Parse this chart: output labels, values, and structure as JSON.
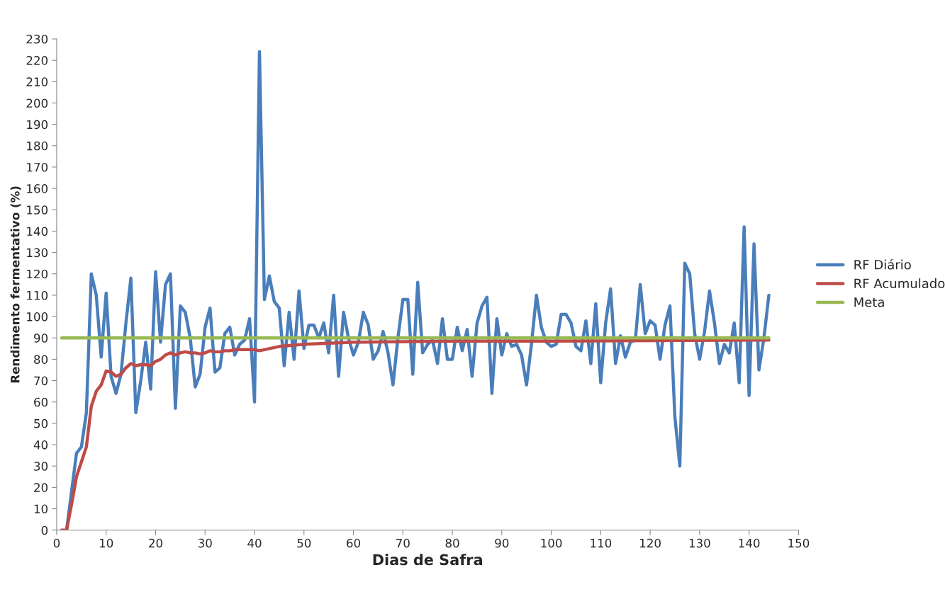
{
  "chart_data": {
    "type": "line",
    "xlabel": "Dias de Safra",
    "ylabel": "Rendimento fermentativo (%)",
    "xlim": [
      0,
      150
    ],
    "ylim": [
      0,
      230
    ],
    "xticks": [
      0,
      10,
      20,
      30,
      40,
      50,
      60,
      70,
      80,
      90,
      100,
      110,
      120,
      130,
      140,
      150
    ],
    "yticks": [
      0,
      10,
      20,
      30,
      40,
      50,
      60,
      70,
      80,
      90,
      100,
      110,
      120,
      130,
      140,
      150,
      160,
      170,
      180,
      190,
      200,
      210,
      220,
      230
    ],
    "grid": false,
    "legend": "right",
    "marker": "none",
    "line_style": "solid",
    "series": [
      {
        "name": "RF Diário",
        "color": "#4a7ebb",
        "x": [
          2,
          3,
          4,
          5,
          6,
          7,
          8,
          9,
          10,
          11,
          12,
          13,
          14,
          15,
          16,
          17,
          18,
          19,
          20,
          21,
          22,
          23,
          24,
          25,
          26,
          27,
          28,
          29,
          30,
          31,
          32,
          33,
          34,
          35,
          36,
          37,
          38,
          39,
          40,
          41,
          42,
          43,
          44,
          45,
          46,
          47,
          48,
          49,
          50,
          51,
          52,
          53,
          54,
          55,
          56,
          57,
          58,
          59,
          60,
          61,
          62,
          63,
          64,
          65,
          66,
          67,
          68,
          69,
          70,
          71,
          72,
          73,
          74,
          75,
          76,
          77,
          78,
          79,
          80,
          81,
          82,
          83,
          84,
          85,
          86,
          87,
          88,
          89,
          90,
          91,
          92,
          93,
          94,
          95,
          96,
          97,
          98,
          99,
          100,
          101,
          102,
          103,
          104,
          105,
          106,
          107,
          108,
          109,
          110,
          111,
          112,
          113,
          114,
          115,
          116,
          117,
          118,
          119,
          120,
          121,
          122,
          123,
          124,
          125,
          126,
          127,
          128,
          129,
          130,
          131,
          132,
          133,
          134,
          135,
          136,
          137,
          138,
          139,
          140,
          141,
          142,
          143,
          144
        ],
        "values": [
          0,
          18,
          36,
          39,
          55,
          120,
          110,
          81,
          111,
          72,
          64,
          73,
          97,
          118,
          55,
          70,
          88,
          66,
          121,
          88,
          115,
          120,
          57,
          105,
          102,
          90,
          67,
          73,
          95,
          104,
          74,
          76,
          92,
          95,
          82,
          87,
          89,
          99,
          60,
          224,
          108,
          119,
          107,
          104,
          77,
          102,
          80,
          112,
          85,
          96,
          96,
          90,
          97,
          83,
          110,
          72,
          102,
          90,
          82,
          88,
          102,
          96,
          80,
          84,
          93,
          83,
          68,
          90,
          108,
          108,
          73,
          116,
          83,
          87,
          89,
          78,
          99,
          80,
          80,
          95,
          84,
          94,
          72,
          97,
          105,
          109,
          64,
          99,
          82,
          92,
          86,
          87,
          82,
          68,
          87,
          110,
          95,
          88,
          86,
          87,
          101,
          101,
          97,
          86,
          84,
          98,
          78,
          106,
          69,
          97,
          113,
          78,
          91,
          81,
          88,
          89,
          115,
          92,
          98,
          96,
          80,
          96,
          105,
          53,
          30,
          125,
          120,
          92,
          80,
          93,
          112,
          97,
          78,
          87,
          83,
          97,
          69,
          142,
          63,
          134,
          75,
          90,
          110
        ]
      },
      {
        "name": "RF Acumulado",
        "color": "#be4b48",
        "x": [
          1,
          2,
          3,
          4,
          5,
          6,
          7,
          8,
          9,
          10,
          11,
          12,
          13,
          14,
          15,
          16,
          17,
          18,
          19,
          20,
          21,
          22,
          23,
          24,
          25,
          26,
          27,
          28,
          29,
          30,
          31,
          32,
          33,
          34,
          35,
          36,
          40,
          41,
          42,
          45,
          50,
          60,
          80,
          100,
          144
        ],
        "values": [
          0,
          0,
          12,
          25,
          32,
          39,
          58,
          65,
          68,
          74.5,
          74,
          72,
          73,
          76,
          78,
          77,
          77.5,
          77.5,
          77,
          79,
          80,
          82,
          83,
          82,
          83,
          83.5,
          83,
          83,
          82.5,
          83,
          84,
          83.5,
          83.5,
          84,
          84,
          84.5,
          84.5,
          84,
          84.5,
          86,
          87,
          88,
          88.5,
          88.5,
          89
        ]
      },
      {
        "name": "Meta",
        "color": "#98b954",
        "x": [
          1,
          144
        ],
        "values": [
          90,
          90
        ]
      }
    ]
  }
}
